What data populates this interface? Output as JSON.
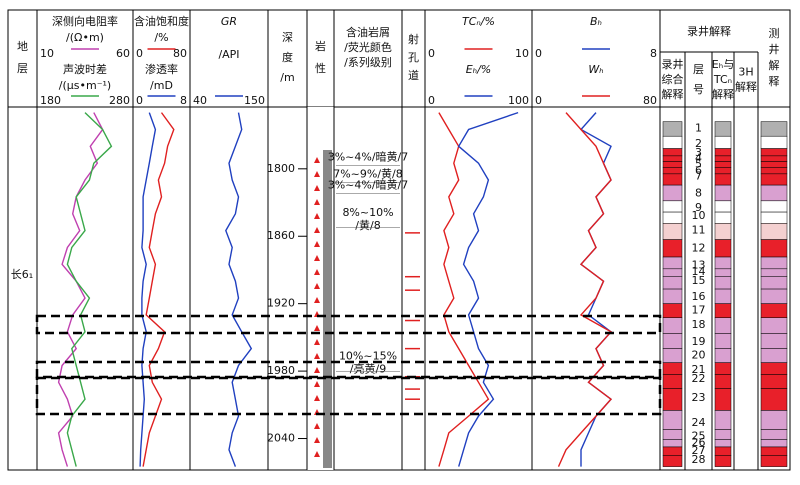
{
  "header": {
    "formation": "地\n层",
    "depth_label": "深\n度\n/m",
    "lithology": "岩\n性",
    "oil_desc": "含油岩屑\n/荧光颜色\n/系列级别",
    "perforation": "射\n孔\n道",
    "mudlog": "录井解释",
    "mudlog_comp": "录井\n综合\n解释",
    "layer_no": "层\n号",
    "eh_tc": "Eₕ与\nTCₙ\n解释",
    "h3": "3H\n解释",
    "welllog": "测\n井\n解\n释"
  },
  "formation_name": "长6₁",
  "depth": {
    "range": [
      1745,
      2068
    ],
    "ticks": [
      1800,
      1860,
      1920,
      1980,
      2040
    ]
  },
  "depths": [
    1750,
    1765,
    1780,
    1795,
    1810,
    1825,
    1840,
    1855,
    1870,
    1885,
    1900,
    1915,
    1930,
    1945,
    1960,
    1975,
    1990,
    2005,
    2020,
    2035,
    2050,
    2065
  ],
  "curves": [
    {
      "name": "深侧向电阻率",
      "unit": "/(Ω•m)",
      "range": [
        10,
        60
      ],
      "color": "#c040b0",
      "values": [
        40,
        45,
        38,
        42,
        35,
        30,
        28,
        32,
        25,
        22,
        30,
        35,
        28,
        25,
        30,
        22,
        20,
        25,
        28,
        20,
        22,
        25
      ]
    },
    {
      "name": "声波时差",
      "unit": "/(μs•m⁻¹)",
      "range": [
        180,
        280
      ],
      "color": "#3aa84a",
      "values": [
        230,
        250,
        260,
        240,
        235,
        220,
        225,
        230,
        215,
        210,
        220,
        235,
        225,
        230,
        215,
        220,
        225,
        230,
        215,
        210,
        215,
        220
      ]
    },
    {
      "name": "含油饱和度",
      "unit": "/%",
      "range": [
        0,
        80
      ],
      "color": "#e02020",
      "values": [
        40,
        60,
        50,
        45,
        35,
        40,
        30,
        25,
        20,
        30,
        25,
        20,
        15,
        45,
        35,
        20,
        25,
        40,
        30,
        20,
        15,
        10
      ]
    },
    {
      "name": "渗透率",
      "unit": "/mD",
      "range": [
        0,
        8
      ],
      "color": "#2040c0",
      "values": [
        2,
        3,
        2.5,
        2,
        1.5,
        1,
        1,
        1,
        0.8,
        1.5,
        1,
        0.8,
        0.8,
        1.5,
        1,
        0.8,
        1,
        1.2,
        1,
        0.8,
        0.6,
        0.5
      ]
    },
    {
      "name": "GR",
      "unit": "/API",
      "range": [
        40,
        150
      ],
      "color": "#2040c0",
      "values": [
        110,
        115,
        105,
        95,
        100,
        110,
        105,
        90,
        100,
        95,
        105,
        110,
        100,
        115,
        130,
        110,
        100,
        105,
        110,
        100,
        95,
        105
      ]
    },
    {
      "name": "TCₙ/%",
      "range": [
        0,
        10
      ],
      "color": "#e02020",
      "values": [
        1,
        2,
        3,
        2.5,
        3,
        2,
        2.5,
        1.5,
        2,
        1.5,
        2,
        2.5,
        1.5,
        2,
        3,
        4,
        5,
        6,
        4,
        2,
        1.5,
        1
      ]
    },
    {
      "name": "Eₕ/%",
      "range": [
        0,
        100
      ],
      "color": "#2040c0",
      "values": [
        90,
        40,
        30,
        50,
        60,
        55,
        45,
        50,
        40,
        35,
        45,
        50,
        40,
        45,
        50,
        60,
        55,
        65,
        50,
        40,
        35,
        30
      ]
    },
    {
      "name": "Bₕ",
      "range": [
        0,
        8
      ],
      "color": "#2040c0",
      "values": [
        4,
        3,
        5,
        4.5,
        5,
        4,
        4.5,
        3.5,
        4,
        3,
        4.5,
        4,
        3.5,
        5,
        4,
        4.5,
        3.5,
        5,
        4,
        3.5,
        3,
        3
      ]
    },
    {
      "name": "Wₕ",
      "range": [
        0,
        80
      ],
      "color": "#e02020",
      "values": [
        20,
        30,
        40,
        45,
        50,
        40,
        45,
        35,
        40,
        30,
        45,
        40,
        30,
        50,
        40,
        45,
        35,
        50,
        40,
        30,
        20,
        15
      ]
    }
  ],
  "oil_descriptions": [
    {
      "text": "3%~4%/暗黄/7",
      "depth": 1790
    },
    {
      "text": "7%~9%/黄/8",
      "depth": 1805
    },
    {
      "text": "3%~4%/暗黄/7",
      "depth": 1815
    },
    {
      "text": "8%~10%\n/黄/8",
      "depth": 1845
    },
    {
      "text": "10%~15%\n/亮黄/9",
      "depth": 1973
    }
  ],
  "perforations": [
    1857,
    1896,
    1908,
    1935,
    1960,
    1985,
    1996,
    2005
  ],
  "layers": [
    {
      "label": "1",
      "depth": 1764,
      "color": "#b0b0b0"
    },
    {
      "label": "2",
      "depth": 1778,
      "color": "#ffffff"
    },
    {
      "label": "3",
      "depth": 1786,
      "color": "#e8202a"
    },
    {
      "label": "4",
      "depth": 1791,
      "color": "#e8202a"
    },
    {
      "label": "5",
      "depth": 1796,
      "color": "#e8202a"
    },
    {
      "label": "6",
      "depth": 1802,
      "color": "#e8202a"
    },
    {
      "label": "7",
      "depth": 1807,
      "color": "#e8202a"
    },
    {
      "label": "8",
      "depth": 1822,
      "color": "#d9a0d0"
    },
    {
      "label": "9",
      "depth": 1835,
      "color": "#ffffff"
    },
    {
      "label": "10",
      "depth": 1842,
      "color": "#ffffff"
    },
    {
      "label": "11",
      "depth": 1855,
      "color": "#f4d0d0"
    },
    {
      "label": "12",
      "depth": 1871,
      "color": "#e8202a"
    },
    {
      "label": "13",
      "depth": 1886,
      "color": "#d9a0d0"
    },
    {
      "label": "14",
      "depth": 1892,
      "color": "#d9a0d0"
    },
    {
      "label": "15",
      "depth": 1900,
      "color": "#d9a0d0"
    },
    {
      "label": "16",
      "depth": 1914,
      "color": "#d9a0d0"
    },
    {
      "label": "17",
      "depth": 1926,
      "color": "#e8202a"
    },
    {
      "label": "18",
      "depth": 1939,
      "color": "#d9a0d0"
    },
    {
      "label": "19",
      "depth": 1954,
      "color": "#d9a0d0"
    },
    {
      "label": "20",
      "depth": 1966,
      "color": "#d9a0d0"
    },
    {
      "label": "21",
      "depth": 1979,
      "color": "#e8202a"
    },
    {
      "label": "22",
      "depth": 1987,
      "color": "#e8202a"
    },
    {
      "label": "23",
      "depth": 2004,
      "color": "#e8202a"
    },
    {
      "label": "24",
      "depth": 2026,
      "color": "#d9a0d0"
    },
    {
      "label": "25",
      "depth": 2038,
      "color": "#d9a0d0"
    },
    {
      "label": "26",
      "depth": 2044,
      "color": "#d9a0d0"
    },
    {
      "label": "27",
      "depth": 2051,
      "color": "#e8202a"
    },
    {
      "label": "28",
      "depth": 2059,
      "color": "#e8202a"
    }
  ]
}
